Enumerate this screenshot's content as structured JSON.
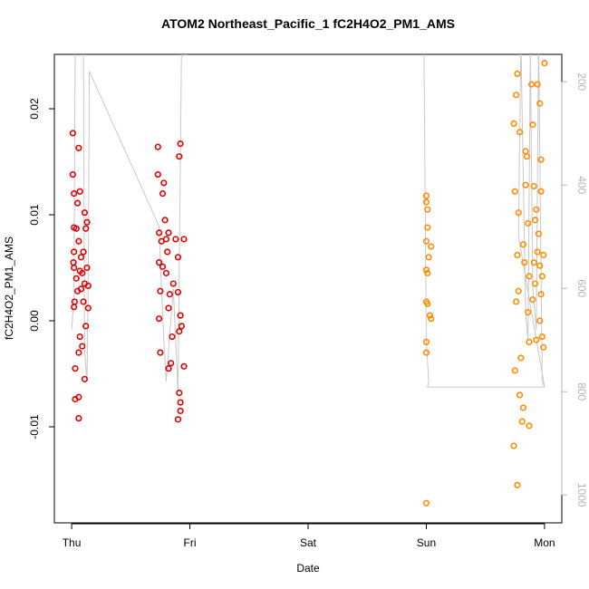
{
  "chart_data": {
    "type": "scatter",
    "title": "ATOM2 Northeast_Pacific_1 fC2H4O2_PM1_AMS",
    "x_label": "Date",
    "y_label": "fC2H4O2_PM1_AMS",
    "xlim": [
      -0.146,
      4.146
    ],
    "xticks": [
      {
        "value": 0,
        "label": "Thu"
      },
      {
        "value": 1,
        "label": "Fri"
      },
      {
        "value": 2,
        "label": "Sat"
      },
      {
        "value": 3,
        "label": "Sun"
      },
      {
        "value": 4,
        "label": "Mon"
      }
    ],
    "ylim": [
      -0.01906,
      0.02513
    ],
    "yticks": [
      {
        "value": -0.01,
        "label": "-0.01"
      },
      {
        "value": 0,
        "label": "0.00"
      },
      {
        "value": 0.01,
        "label": "0.01"
      },
      {
        "value": 0.02,
        "label": "0.02"
      }
    ],
    "y2lim": [
      1054,
      147
    ],
    "y2ticks": [
      200,
      400,
      600,
      800,
      1000
    ],
    "y2_color": "#b4b4b4",
    "series": [
      {
        "color": "#e00000",
        "x": [
          0.01,
          0.01,
          0.02,
          0.02,
          0.02,
          0.015,
          0.02,
          0.025,
          0.02,
          0.03,
          0.03,
          0.06,
          0.06,
          0.06,
          0.07,
          0.05,
          0.04,
          0.06,
          0.08,
          0.09,
          0.1,
          0.11,
          0.13,
          0.12,
          0.13,
          0.14,
          0.14,
          0.12,
          0.11,
          0.09,
          0.07,
          0.06,
          0.05,
          0.08,
          0.1,
          0.04,
          0.07,
          0.11,
          0.73,
          0.73,
          0.74,
          0.74,
          0.75,
          0.74,
          0.75,
          0.77,
          0.78,
          0.79,
          0.8,
          0.81,
          0.8,
          0.82,
          0.83,
          0.82,
          0.82,
          0.84,
          0.85,
          0.86,
          0.9,
          0.91,
          0.92,
          0.9,
          0.92,
          0.93,
          0.91,
          0.92,
          0.92,
          0.9,
          0.95,
          0.95,
          0.91,
          0.88,
          0.76,
          0.77
        ],
        "values": [
          0.0177,
          0.0138,
          0.012,
          0.0088,
          0.0065,
          0.0055,
          0.005,
          0.0018,
          0.0013,
          -0.0045,
          -0.0074,
          -0.0072,
          -0.0092,
          0.0163,
          0.0122,
          0.0111,
          0.0087,
          0.0075,
          0.006,
          0.0045,
          0.0065,
          0.0102,
          0.0093,
          0.0087,
          0.005,
          0.0033,
          0.0012,
          -0.0005,
          -0.0055,
          -0.0024,
          -0.0015,
          -0.003,
          0.0028,
          0.003,
          0.0018,
          0.004,
          0.0047,
          0.0035,
          0.0164,
          0.0138,
          0.0083,
          0.0055,
          0.0028,
          0.0002,
          -0.003,
          0.012,
          0.013,
          0.0095,
          0.0077,
          0.0065,
          0.0045,
          0.0083,
          0.0025,
          0.0012,
          -0.0045,
          -0.004,
          -0.0015,
          0.0035,
          0.006,
          0.0155,
          0.0167,
          0.0027,
          0.0005,
          -0.0005,
          -0.0068,
          -0.0077,
          -0.0085,
          -0.0093,
          0.0077,
          -0.0043,
          -0.001,
          0.0077,
          0.0075,
          0.0051
        ]
      },
      {
        "color": "#ff8c00",
        "x": [
          3.0,
          3.0,
          3.01,
          3.0,
          3.02,
          3.0,
          3.01,
          3.04,
          3.0,
          3.01,
          3.03,
          3.04,
          3.0,
          3.0,
          3.0,
          3.01,
          3.74,
          3.75,
          3.75,
          3.74,
          3.77,
          3.76,
          3.79,
          3.78,
          3.77,
          3.78,
          3.76,
          3.77,
          3.79,
          3.8,
          3.81,
          3.82,
          3.82,
          3.83,
          3.84,
          3.85,
          3.84,
          3.86,
          3.87,
          3.86,
          3.87,
          3.87,
          3.89,
          3.9,
          3.91,
          3.92,
          3.91,
          3.92,
          3.9,
          3.93,
          3.94,
          3.93,
          3.95,
          3.96,
          3.97,
          3.97,
          3.96,
          3.98,
          3.97,
          3.99,
          4.0,
          3.99,
          3.98,
          3.96,
          3.94
        ],
        "values": [
          0.0118,
          0.0112,
          0.0088,
          0.0075,
          0.006,
          0.0048,
          0.0045,
          0.007,
          0.0018,
          0.0016,
          0.0005,
          0.0002,
          -0.002,
          -0.003,
          -0.0172,
          0.0105,
          0.0186,
          0.0122,
          -0.0047,
          -0.0118,
          0.0233,
          0.0213,
          0.0178,
          0.0102,
          0.0062,
          0.0028,
          0.0018,
          -0.0155,
          -0.007,
          -0.0035,
          -0.0095,
          -0.0082,
          0.0072,
          0.0055,
          0.016,
          0.0155,
          0.0128,
          0.0092,
          0.0042,
          0.0008,
          -0.002,
          -0.0099,
          0.0223,
          0.0185,
          0.0127,
          0.0095,
          0.0055,
          0.0035,
          0.002,
          -0.0018,
          0.0223,
          0.0105,
          0.0082,
          0.0205,
          0.0152,
          0.0122,
          0.0052,
          0.0042,
          0.0025,
          -0.0025,
          0.0243,
          0.0062,
          -0.0015,
          0.0,
          0.0065
        ]
      },
      {
        "color": "#c8c8c8",
        "axis": "y2",
        "x": [
          0.0,
          0.02,
          0.03,
          0.08,
          0.1,
          0.11,
          0.13,
          0.14,
          0.15,
          0.74,
          0.76,
          0.78,
          0.8,
          0.86,
          0.9,
          0.93,
          0.95,
          1.1,
          2.97,
          2.98,
          3.0,
          3.02,
          3.01,
          4.0,
          3.78,
          3.8,
          3.84,
          3.86,
          3.88,
          3.9,
          3.93,
          3.95,
          3.98,
          4.0
        ],
        "values": [
          680,
          620,
          120,
          120,
          140,
          720,
          780,
          600,
          180,
          480,
          600,
          700,
          780,
          600,
          800,
          120,
          150,
          120,
          120,
          140,
          700,
          780,
          791,
          791,
          500,
          120,
          650,
          700,
          140,
          600,
          680,
          120,
          780,
          791
        ]
      }
    ]
  }
}
